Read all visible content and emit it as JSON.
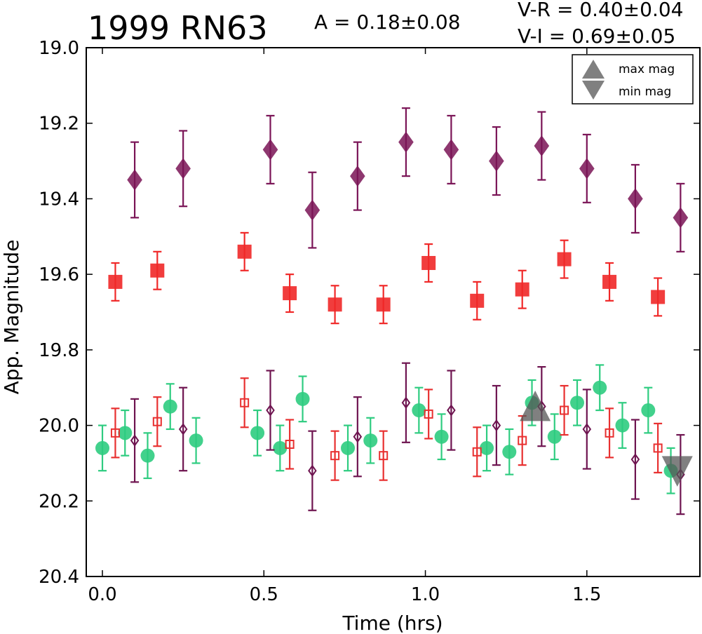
{
  "chart_data": {
    "type": "scatter",
    "title": "1999 RN63",
    "annotations": {
      "amplitude": "A  = 0.18±0.08",
      "v_r": "V-R = 0.40±0.04",
      "v_i": "V-I  = 0.69±0.05"
    },
    "xlabel": "Time (hrs)",
    "ylabel": "App. Magnitude",
    "xlim": [
      -0.05,
      1.85
    ],
    "ylim": [
      20.4,
      19.0
    ],
    "y_inverted": true,
    "x_ticks": [
      "0.0",
      "0.5",
      "1.0",
      "1.5"
    ],
    "x_tick_values": [
      0.0,
      0.5,
      1.0,
      1.5
    ],
    "y_ticks": [
      "19.0",
      "19.2",
      "19.4",
      "19.6",
      "19.8",
      "20.0",
      "20.2",
      "20.4"
    ],
    "y_tick_values": [
      19.0,
      19.2,
      19.4,
      19.6,
      19.8,
      20.0,
      20.2,
      20.4
    ],
    "grid": false,
    "legend": {
      "placement": "top-right",
      "entries": [
        {
          "label": "max mag",
          "marker": "triangle-up",
          "color": "#555555"
        },
        {
          "label": "min mag",
          "marker": "triangle-down",
          "color": "#555555"
        }
      ]
    },
    "series": [
      {
        "marker": "diamond-filled",
        "color": "#7a1456",
        "points": [
          {
            "x": 0.1,
            "y": 19.35,
            "err": 0.1
          },
          {
            "x": 0.25,
            "y": 19.32,
            "err": 0.1
          },
          {
            "x": 0.52,
            "y": 19.27,
            "err": 0.09
          },
          {
            "x": 0.65,
            "y": 19.43,
            "err": 0.1
          },
          {
            "x": 0.79,
            "y": 19.34,
            "err": 0.09
          },
          {
            "x": 0.94,
            "y": 19.25,
            "err": 0.09
          },
          {
            "x": 1.08,
            "y": 19.27,
            "err": 0.09
          },
          {
            "x": 1.22,
            "y": 19.3,
            "err": 0.09
          },
          {
            "x": 1.36,
            "y": 19.26,
            "err": 0.09
          },
          {
            "x": 1.5,
            "y": 19.32,
            "err": 0.09
          },
          {
            "x": 1.65,
            "y": 19.4,
            "err": 0.09
          },
          {
            "x": 1.79,
            "y": 19.45,
            "err": 0.09
          }
        ]
      },
      {
        "marker": "square-filled",
        "color": "#f02828",
        "points": [
          {
            "x": 0.04,
            "y": 19.62,
            "err": 0.05
          },
          {
            "x": 0.17,
            "y": 19.59,
            "err": 0.05
          },
          {
            "x": 0.44,
            "y": 19.54,
            "err": 0.05
          },
          {
            "x": 0.58,
            "y": 19.65,
            "err": 0.05
          },
          {
            "x": 0.72,
            "y": 19.68,
            "err": 0.05
          },
          {
            "x": 0.87,
            "y": 19.68,
            "err": 0.05
          },
          {
            "x": 1.01,
            "y": 19.57,
            "err": 0.05
          },
          {
            "x": 1.16,
            "y": 19.67,
            "err": 0.05
          },
          {
            "x": 1.3,
            "y": 19.64,
            "err": 0.05
          },
          {
            "x": 1.43,
            "y": 19.56,
            "err": 0.05
          },
          {
            "x": 1.57,
            "y": 19.62,
            "err": 0.05
          },
          {
            "x": 1.72,
            "y": 19.66,
            "err": 0.05
          }
        ]
      },
      {
        "marker": "circle-filled",
        "color": "#2ecc80",
        "points": [
          {
            "x": 0.0,
            "y": 20.06,
            "err": 0.06
          },
          {
            "x": 0.07,
            "y": 20.02,
            "err": 0.06
          },
          {
            "x": 0.14,
            "y": 20.08,
            "err": 0.06
          },
          {
            "x": 0.21,
            "y": 19.95,
            "err": 0.06
          },
          {
            "x": 0.29,
            "y": 20.04,
            "err": 0.06
          },
          {
            "x": 0.48,
            "y": 20.02,
            "err": 0.06
          },
          {
            "x": 0.55,
            "y": 20.06,
            "err": 0.06
          },
          {
            "x": 0.62,
            "y": 19.93,
            "err": 0.06
          },
          {
            "x": 0.76,
            "y": 20.06,
            "err": 0.06
          },
          {
            "x": 0.83,
            "y": 20.04,
            "err": 0.06
          },
          {
            "x": 0.98,
            "y": 19.96,
            "err": 0.06
          },
          {
            "x": 1.05,
            "y": 20.03,
            "err": 0.06
          },
          {
            "x": 1.19,
            "y": 20.06,
            "err": 0.06
          },
          {
            "x": 1.26,
            "y": 20.07,
            "err": 0.06
          },
          {
            "x": 1.33,
            "y": 19.94,
            "err": 0.06
          },
          {
            "x": 1.4,
            "y": 20.03,
            "err": 0.06
          },
          {
            "x": 1.47,
            "y": 19.94,
            "err": 0.06
          },
          {
            "x": 1.54,
            "y": 19.9,
            "err": 0.06
          },
          {
            "x": 1.61,
            "y": 20.0,
            "err": 0.06
          },
          {
            "x": 1.69,
            "y": 19.96,
            "err": 0.06
          },
          {
            "x": 1.76,
            "y": 20.12,
            "err": 0.06
          }
        ]
      },
      {
        "marker": "square-open",
        "color": "#e83030",
        "points": [
          {
            "x": 0.04,
            "y": 20.02,
            "err": 0.065
          },
          {
            "x": 0.17,
            "y": 19.99,
            "err": 0.065
          },
          {
            "x": 0.44,
            "y": 19.94,
            "err": 0.065
          },
          {
            "x": 0.58,
            "y": 20.05,
            "err": 0.065
          },
          {
            "x": 0.72,
            "y": 20.08,
            "err": 0.065
          },
          {
            "x": 0.87,
            "y": 20.08,
            "err": 0.065
          },
          {
            "x": 1.01,
            "y": 19.97,
            "err": 0.065
          },
          {
            "x": 1.16,
            "y": 20.07,
            "err": 0.065
          },
          {
            "x": 1.3,
            "y": 20.04,
            "err": 0.065
          },
          {
            "x": 1.43,
            "y": 19.96,
            "err": 0.065
          },
          {
            "x": 1.57,
            "y": 20.02,
            "err": 0.065
          },
          {
            "x": 1.72,
            "y": 20.06,
            "err": 0.065
          }
        ]
      },
      {
        "marker": "diamond-open",
        "color": "#6e1450",
        "points": [
          {
            "x": 0.1,
            "y": 20.04,
            "err": 0.11
          },
          {
            "x": 0.25,
            "y": 20.01,
            "err": 0.11
          },
          {
            "x": 0.52,
            "y": 19.96,
            "err": 0.105
          },
          {
            "x": 0.65,
            "y": 20.12,
            "err": 0.105
          },
          {
            "x": 0.79,
            "y": 20.03,
            "err": 0.105
          },
          {
            "x": 0.94,
            "y": 19.94,
            "err": 0.105
          },
          {
            "x": 1.08,
            "y": 19.96,
            "err": 0.105
          },
          {
            "x": 1.22,
            "y": 20.0,
            "err": 0.105
          },
          {
            "x": 1.36,
            "y": 19.95,
            "err": 0.105
          },
          {
            "x": 1.5,
            "y": 20.01,
            "err": 0.105
          },
          {
            "x": 1.65,
            "y": 20.09,
            "err": 0.105
          },
          {
            "x": 1.79,
            "y": 20.13,
            "err": 0.105
          }
        ]
      }
    ],
    "extrema": [
      {
        "kind": "max",
        "marker": "triangle-up",
        "x": 1.34,
        "y": 19.96,
        "color": "#555555"
      },
      {
        "kind": "min",
        "marker": "triangle-down",
        "x": 1.78,
        "y": 20.11,
        "color": "#555555"
      }
    ]
  }
}
